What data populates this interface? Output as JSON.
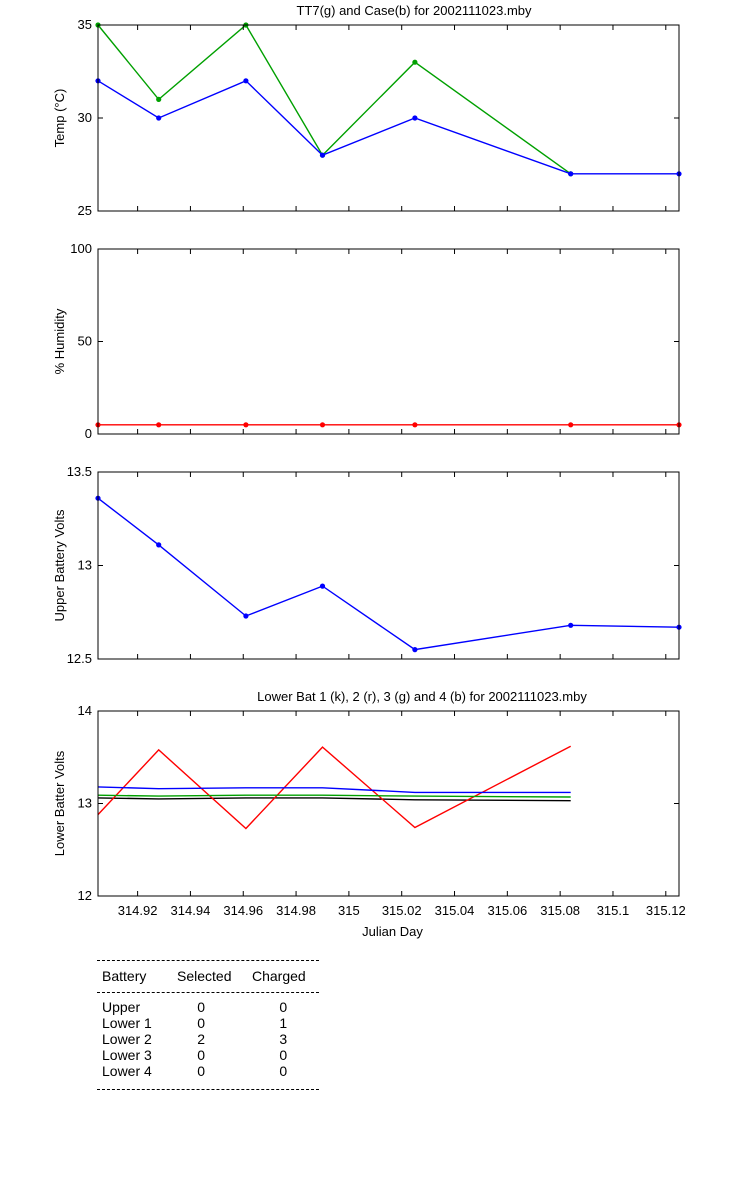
{
  "chart_data": [
    {
      "type": "line",
      "title": "TT7(g) and Case(b) for 2002111023.mby",
      "ylabel": "Temp  (°C)",
      "xlim": [
        314.905,
        315.125
      ],
      "ylim": [
        25,
        35
      ],
      "yticks": [
        25,
        30,
        35
      ],
      "yticklabels": [
        "25",
        "30",
        "35"
      ],
      "show_xticklabels": false,
      "series": [
        {
          "color": "#00a000",
          "markers": true,
          "x": [
            314.905,
            314.928,
            314.961,
            314.99,
            315.025,
            315.084
          ],
          "y": [
            35,
            31,
            35,
            28,
            33,
            27
          ]
        },
        {
          "color": "#0000ff",
          "markers": true,
          "x": [
            314.905,
            314.928,
            314.961,
            314.99,
            315.025,
            315.084,
            315.125
          ],
          "y": [
            32,
            30,
            32,
            28,
            30,
            27,
            27
          ]
        }
      ]
    },
    {
      "type": "line",
      "title": "",
      "ylabel": "% Humidity",
      "xlim": [
        314.905,
        315.125
      ],
      "ylim": [
        0,
        100
      ],
      "yticks": [
        0,
        50,
        100
      ],
      "yticklabels": [
        "0",
        "50",
        "100"
      ],
      "show_xticklabels": false,
      "series": [
        {
          "color": "#ff0000",
          "markers": true,
          "x": [
            314.905,
            314.928,
            314.961,
            314.99,
            315.025,
            315.084,
            315.125
          ],
          "y": [
            5,
            5,
            5,
            5,
            5,
            5,
            5
          ]
        }
      ]
    },
    {
      "type": "line",
      "title": "",
      "ylabel": "Upper Battery Volts",
      "xlim": [
        314.905,
        315.125
      ],
      "ylim": [
        12.5,
        13.5
      ],
      "yticks": [
        12.5,
        13,
        13.5
      ],
      "yticklabels": [
        "12.5",
        "13",
        "13.5"
      ],
      "show_xticklabels": false,
      "series": [
        {
          "color": "#0000ff",
          "markers": true,
          "x": [
            314.905,
            314.928,
            314.961,
            314.99,
            315.025,
            315.084,
            315.125
          ],
          "y": [
            13.36,
            13.11,
            12.73,
            12.89,
            12.55,
            12.68,
            12.67
          ]
        }
      ]
    },
    {
      "type": "line",
      "title": "Lower Bat 1 (k), 2 (r), 3 (g) and 4 (b) for 2002111023.mby",
      "ylabel": "Lower Batter Volts",
      "xlabel": "Julian Day",
      "xlim": [
        314.905,
        315.125
      ],
      "ylim": [
        12,
        14
      ],
      "yticks": [
        12,
        13,
        14
      ],
      "yticklabels": [
        "12",
        "13",
        "14"
      ],
      "xticks": [
        314.92,
        314.94,
        314.96,
        314.98,
        315,
        315.02,
        315.04,
        315.06,
        315.08,
        315.1,
        315.12
      ],
      "xticklabels": [
        "314.92",
        "314.94",
        "314.96",
        "314.98",
        "315",
        "315.02",
        "315.04",
        "315.06",
        "315.08",
        "315.1",
        "315.12"
      ],
      "show_xticklabels": true,
      "series": [
        {
          "color": "#000000",
          "markers": false,
          "x": [
            314.905,
            314.928,
            314.961,
            314.99,
            315.025,
            315.084
          ],
          "y": [
            13.06,
            13.05,
            13.06,
            13.06,
            13.04,
            13.03
          ]
        },
        {
          "color": "#ff0000",
          "markers": false,
          "x": [
            314.905,
            314.928,
            314.961,
            314.99,
            315.025,
            315.084
          ],
          "y": [
            12.88,
            13.58,
            12.73,
            13.61,
            12.74,
            13.62
          ]
        },
        {
          "color": "#00a000",
          "markers": false,
          "x": [
            314.905,
            314.928,
            314.961,
            314.99,
            315.025,
            315.084
          ],
          "y": [
            13.09,
            13.08,
            13.09,
            13.09,
            13.08,
            13.07
          ]
        },
        {
          "color": "#0000ff",
          "markers": false,
          "x": [
            314.905,
            314.928,
            314.961,
            314.99,
            315.025,
            315.084
          ],
          "y": [
            13.18,
            13.16,
            13.17,
            13.17,
            13.12,
            13.12
          ]
        }
      ]
    }
  ],
  "battery_table": {
    "headers": [
      "Battery",
      "Selected",
      "Charged"
    ],
    "rows": [
      {
        "battery": "Upper",
        "selected": "0",
        "charged": "0"
      },
      {
        "battery": "Lower 1",
        "selected": "0",
        "charged": "1"
      },
      {
        "battery": "Lower 2",
        "selected": "2",
        "charged": "3"
      },
      {
        "battery": "Lower 3",
        "selected": "0",
        "charged": "0"
      },
      {
        "battery": "Lower 4",
        "selected": "0",
        "charged": "0"
      }
    ]
  }
}
